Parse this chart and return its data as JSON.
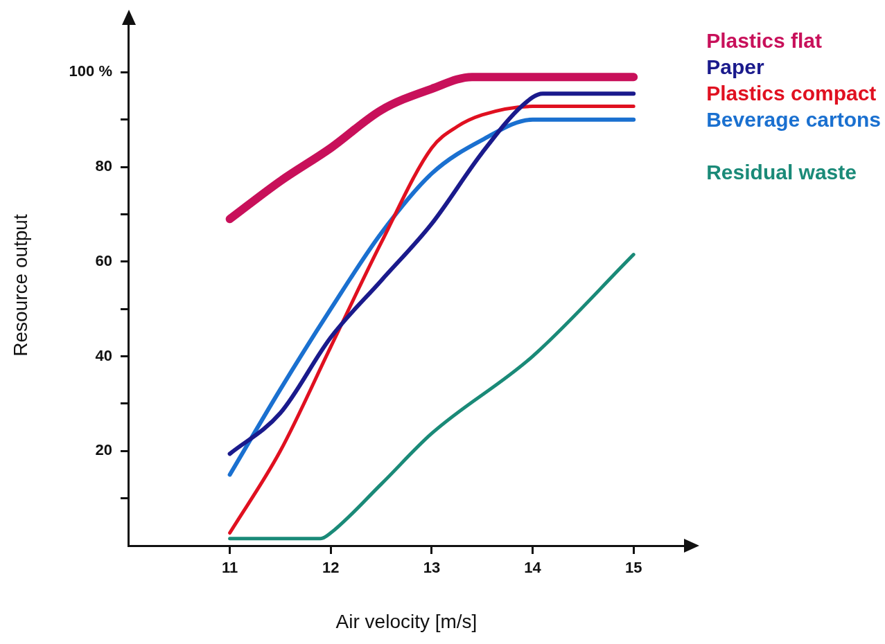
{
  "chart_data": {
    "type": "line",
    "xlabel": "Air velocity [m/s]",
    "ylabel": "Resource output",
    "xlim": [
      10,
      15.5
    ],
    "xticks": [
      11,
      12,
      13,
      14,
      15
    ],
    "ylim": [
      0,
      110
    ],
    "yticks": [
      {
        "value": 10,
        "label": null
      },
      20,
      {
        "value": 30,
        "label": null
      },
      40,
      {
        "value": 50,
        "label": null
      },
      60,
      {
        "value": 70,
        "label": null
      },
      80,
      {
        "value": 90,
        "label": null
      },
      {
        "value": 100,
        "label": "100 %"
      }
    ],
    "grid": false,
    "legend": "top right",
    "marker": "none",
    "line_style": "solid",
    "series": [
      {
        "name": "Plastics flat",
        "color": "#c8105a",
        "x": [
          11,
          11.5,
          12,
          12.5,
          13,
          13.4,
          14,
          15
        ],
        "values": [
          69,
          77,
          84,
          92,
          96.5,
          99,
          99,
          99
        ]
      },
      {
        "name": "Paper",
        "color": "#1a1a8c",
        "x": [
          11,
          11.5,
          12,
          12.5,
          13,
          13.5,
          13.9,
          14.1,
          15
        ],
        "values": [
          19.4,
          28,
          44,
          56,
          68,
          83,
          93,
          95.5,
          95.5
        ]
      },
      {
        "name": "Plastics compact",
        "color": "#e01020",
        "x": [
          11,
          11.5,
          12,
          12.5,
          13,
          13.25,
          13.5,
          14,
          15
        ],
        "values": [
          2.7,
          20,
          42,
          64,
          84,
          88.5,
          91,
          92.8,
          92.8
        ]
      },
      {
        "name": "Beverage cartons",
        "color": "#1a70d0",
        "x": [
          11,
          11.5,
          12,
          12.5,
          13,
          13.5,
          14,
          15
        ],
        "values": [
          15,
          33,
          50,
          66,
          78.6,
          85.7,
          90,
          90
        ]
      },
      {
        "name": "Residual waste",
        "color": "#1a8a78",
        "x": [
          11,
          11.9,
          12,
          12.5,
          13,
          14,
          15
        ],
        "values": [
          1.5,
          1.5,
          2.7,
          13,
          23.7,
          40,
          61.5
        ]
      }
    ]
  }
}
